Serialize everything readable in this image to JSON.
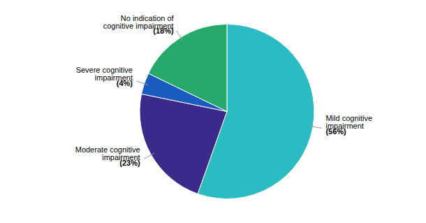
{
  "chart_data": {
    "type": "pie",
    "categories": [
      "Mild cognitive\nimpairment",
      "Moderate cognitive\nimpairment",
      "Severe cognitive\nimpairment",
      "No indication of\ncognitive impairment"
    ],
    "values": [
      56,
      23,
      4,
      18
    ],
    "value_labels": [
      "(56%)",
      "(23%)",
      "(4%)",
      "(18%)"
    ],
    "colors": [
      "#2ABCC2",
      "#3B2A8C",
      "#1A5BBF",
      "#27A96C"
    ],
    "data_labels": true
  }
}
